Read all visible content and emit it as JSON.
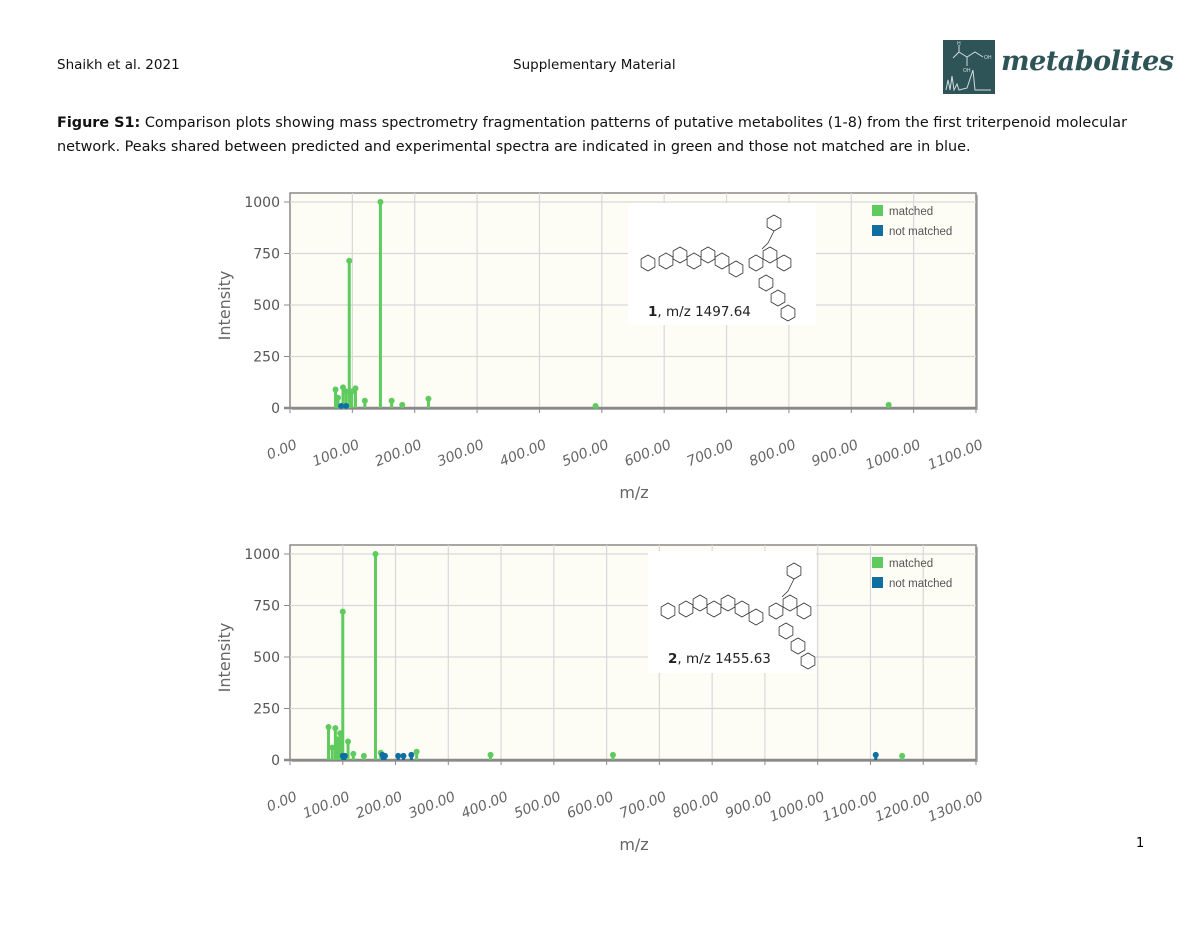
{
  "header": {
    "left": "Shaikh et al. 2021",
    "center": "Supplementary Material",
    "logo_text": "metabolites"
  },
  "caption": {
    "label": "Figure S1:",
    "text": " Comparison plots showing mass spectrometry fragmentation patterns of putative metabolites (1-8) from the first triterpenoid molecular network. Peaks shared between predicted and experimental spectra are indicated in green and those not matched are in blue."
  },
  "page_number": "1",
  "colors": {
    "matched": "#5fcb5f",
    "not_matched": "#0f6fa0",
    "plot_bg": "#fdfcf5",
    "grid": "#d8d8d8",
    "axis": "#8a8a8a",
    "logo": "#2f5457"
  },
  "chart_data": [
    {
      "type": "bar",
      "subtype": "mass-spectrum stem plot",
      "title": "",
      "xlabel": "m/z",
      "ylabel": "Intensity",
      "xlim": [
        0,
        1100
      ],
      "ylim": [
        0,
        1000
      ],
      "x_ticks": [
        "0.00",
        "100.00",
        "200.00",
        "300.00",
        "400.00",
        "500.00",
        "600.00",
        "700.00",
        "800.00",
        "900.00",
        "1000.00",
        "1100.00"
      ],
      "y_ticks": [
        "0",
        "250",
        "500",
        "750",
        "1000"
      ],
      "grid": true,
      "legend": {
        "position": "top-right",
        "entries": [
          "matched",
          "not matched"
        ]
      },
      "annotation": {
        "compound": "1",
        "text": ", m/z 1497.64"
      },
      "series": [
        {
          "name": "matched",
          "color": "#5fcb5f",
          "points": [
            [
              73,
              90
            ],
            [
              77,
              50
            ],
            [
              85,
              100
            ],
            [
              90,
              80
            ],
            [
              95,
              715
            ],
            [
              99,
              80
            ],
            [
              105,
              95
            ],
            [
              120,
              35
            ],
            [
              145,
              1000
            ],
            [
              163,
              35
            ],
            [
              180,
              15
            ],
            [
              222,
              45
            ],
            [
              490,
              10
            ],
            [
              960,
              15
            ]
          ]
        },
        {
          "name": "not matched",
          "color": "#0f6fa0",
          "points": [
            [
              82,
              10
            ],
            [
              90,
              10
            ]
          ]
        }
      ]
    },
    {
      "type": "bar",
      "subtype": "mass-spectrum stem plot",
      "title": "",
      "xlabel": "m/z",
      "ylabel": "Intensity",
      "xlim": [
        0,
        1300
      ],
      "ylim": [
        0,
        1000
      ],
      "x_ticks": [
        "0.00",
        "100.00",
        "200.00",
        "300.00",
        "400.00",
        "500.00",
        "600.00",
        "700.00",
        "800.00",
        "900.00",
        "1000.00",
        "1100.00",
        "1200.00",
        "1300.00"
      ],
      "y_ticks": [
        "0",
        "250",
        "500",
        "750",
        "1000"
      ],
      "grid": true,
      "legend": {
        "position": "top-right",
        "entries": [
          "matched",
          "not matched"
        ]
      },
      "annotation": {
        "compound": "2",
        "text": ", m/z 1455.63"
      },
      "series": [
        {
          "name": "matched",
          "color": "#5fcb5f",
          "points": [
            [
              73,
              160
            ],
            [
              80,
              60
            ],
            [
              86,
              155
            ],
            [
              90,
              100
            ],
            [
              95,
              130
            ],
            [
              100,
              720
            ],
            [
              110,
              90
            ],
            [
              120,
              30
            ],
            [
              140,
              20
            ],
            [
              162,
              1000
            ],
            [
              172,
              35
            ],
            [
              240,
              40
            ],
            [
              380,
              25
            ],
            [
              612,
              25
            ],
            [
              1160,
              20
            ]
          ]
        },
        {
          "name": "not matched",
          "color": "#0f6fa0",
          "points": [
            [
              100,
              20
            ],
            [
              104,
              20
            ],
            [
              175,
              25
            ],
            [
              180,
              20
            ],
            [
              205,
              20
            ],
            [
              215,
              20
            ],
            [
              230,
              25
            ],
            [
              1110,
              25
            ]
          ]
        }
      ]
    }
  ]
}
